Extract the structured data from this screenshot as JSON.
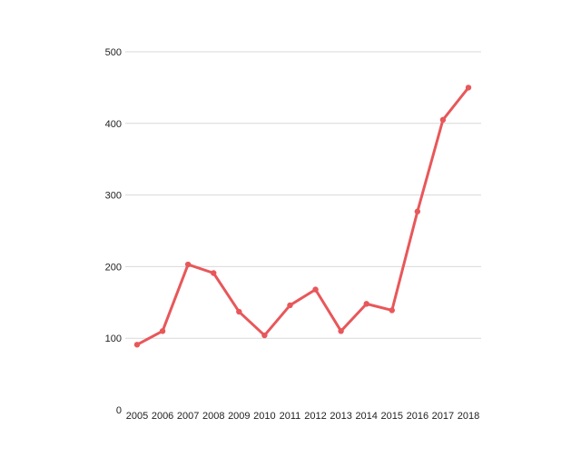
{
  "chart_data": {
    "type": "line",
    "title": "",
    "xlabel": "",
    "ylabel": "",
    "categories": [
      "2005",
      "2006",
      "2007",
      "2008",
      "2009",
      "2010",
      "2011",
      "2012",
      "2013",
      "2014",
      "2015",
      "2016",
      "2017",
      "2018"
    ],
    "series": [
      {
        "values": [
          91,
          110,
          203,
          191,
          137,
          104,
          146,
          168,
          110,
          148,
          139,
          277,
          405,
          450
        ],
        "color": "#e8575a"
      }
    ],
    "y_ticks": [
      "0",
      "100",
      "200",
      "300",
      "400",
      "500"
    ],
    "ylim": [
      0,
      500
    ],
    "grid": true,
    "legend": "none"
  }
}
